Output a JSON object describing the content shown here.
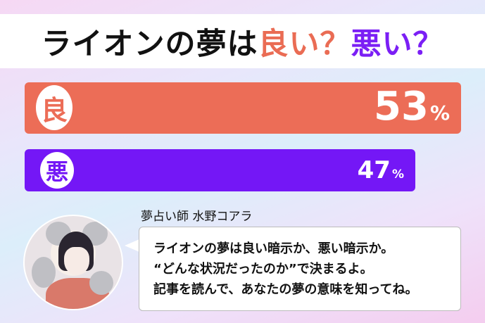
{
  "title": {
    "part1": "ライオンの夢は",
    "good": "良い？",
    "bad": "悪い？"
  },
  "results": [
    {
      "label": "良",
      "percent": 53,
      "value": "53",
      "unit": "%",
      "color": "#ec6d57"
    },
    {
      "label": "悪",
      "percent": 47,
      "value": "47",
      "unit": "%",
      "color": "#7417f6"
    }
  ],
  "advisor": {
    "name": "夢占い師 水野コアラ"
  },
  "message": [
    "ライオンの夢は良い暗示か、悪い暗示か。",
    "“どんな状況だったのか”で決まるよ。",
    "記事を読んで、あなたの夢の意味を知ってね。"
  ]
}
